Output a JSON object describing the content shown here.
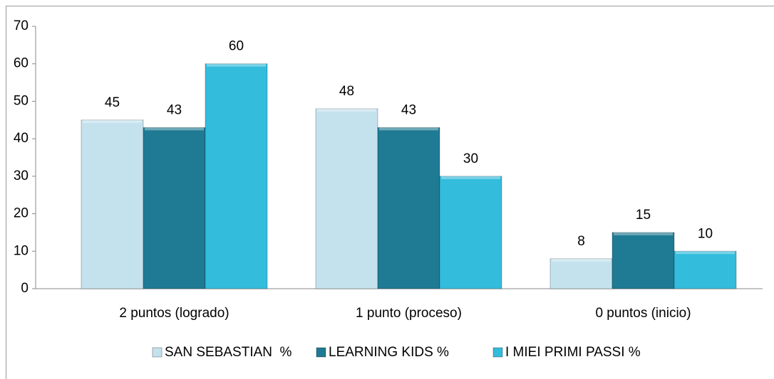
{
  "chart_data": {
    "type": "bar",
    "categories": [
      "2 puntos (logrado)",
      "1 punto (proceso)",
      "0 puntos (inicio)"
    ],
    "series": [
      {
        "name": "SAN SEBASTIAN  %",
        "color": "#c4e2ee",
        "values": [
          45,
          48,
          8
        ]
      },
      {
        "name": "LEARNING KIDS %",
        "color": "#1f7a93",
        "values": [
          43,
          43,
          15
        ]
      },
      {
        "name": "I MIEI PRIMI PASSI %",
        "color": "#33bcdc",
        "values": [
          60,
          30,
          10
        ]
      }
    ],
    "ylim": [
      0,
      70
    ],
    "yticks": [
      0,
      10,
      20,
      30,
      40,
      50,
      60,
      70
    ],
    "grid": false,
    "legend": "bottom"
  }
}
